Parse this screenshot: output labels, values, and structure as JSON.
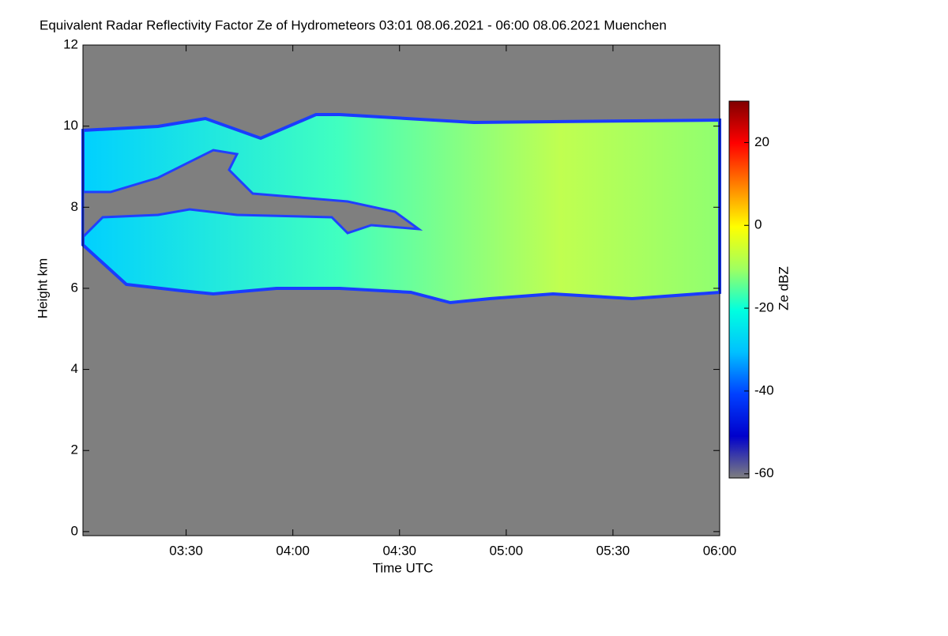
{
  "chart_data": {
    "type": "heatmap",
    "title": "Equivalent Radar Reflectivity Factor Ze of Hydrometeors   03:01 08.06.2021 - 06:00 08.06.2021 Muenchen",
    "x_label": "Time UTC",
    "y_label": "Height km",
    "xlim": [
      181,
      360
    ],
    "xticks": [
      {
        "value": 210,
        "label": "03:30"
      },
      {
        "value": 240,
        "label": "04:00"
      },
      {
        "value": 270,
        "label": "04:30"
      },
      {
        "value": 300,
        "label": "05:00"
      },
      {
        "value": 330,
        "label": "05:30"
      },
      {
        "value": 360,
        "label": "06:00"
      }
    ],
    "ylim": [
      -0.1,
      12
    ],
    "yticks": [
      0,
      2,
      4,
      6,
      8,
      10,
      12
    ],
    "colorbar_label": "Ze dBZ",
    "zlim": [
      -61,
      30
    ],
    "zticks": [
      -60,
      -40,
      -20,
      0,
      20
    ],
    "colormap": [
      "#7f7f7f",
      "#0000cc",
      "#0040ff",
      "#00c0ff",
      "#00ffe0",
      "#a0ff60",
      "#ffff00",
      "#ff8000",
      "#ff0000",
      "#800000"
    ],
    "background": "#7f7f7f"
  }
}
